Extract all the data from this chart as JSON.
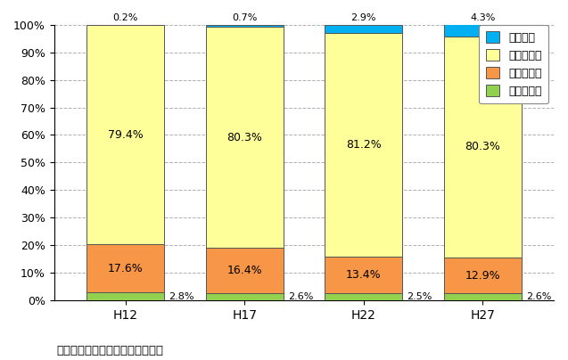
{
  "categories": [
    "H12",
    "H17",
    "H22",
    "H27"
  ],
  "series": {
    "第一次産業": [
      2.8,
      2.6,
      2.5,
      2.6
    ],
    "第二次産業": [
      17.6,
      16.4,
      13.4,
      12.9
    ],
    "第三次産業": [
      79.4,
      80.3,
      81.2,
      80.3
    ],
    "分類不能": [
      0.2,
      0.7,
      2.9,
      4.3
    ]
  },
  "colors": {
    "第一次産業": "#92d050",
    "第二次産業": "#f79646",
    "第三次産業": "#ffff99",
    "分類不能": "#00b0f0"
  },
  "bar_width": 0.65,
  "ylim": [
    0,
    100
  ],
  "ytick_labels": [
    "0%",
    "10%",
    "20%",
    "30%",
    "40%",
    "50%",
    "60%",
    "70%",
    "80%",
    "90%",
    "100%"
  ],
  "ytick_values": [
    0,
    10,
    20,
    30,
    40,
    50,
    60,
    70,
    80,
    90,
    100
  ],
  "footnote": "出典：伊東市統計書　（伊東市）",
  "background_color": "#ffffff",
  "grid_color": "#b0b0b0",
  "legend_order": [
    "分類不能",
    "第三次産業",
    "第二次産業",
    "第一次産業"
  ]
}
